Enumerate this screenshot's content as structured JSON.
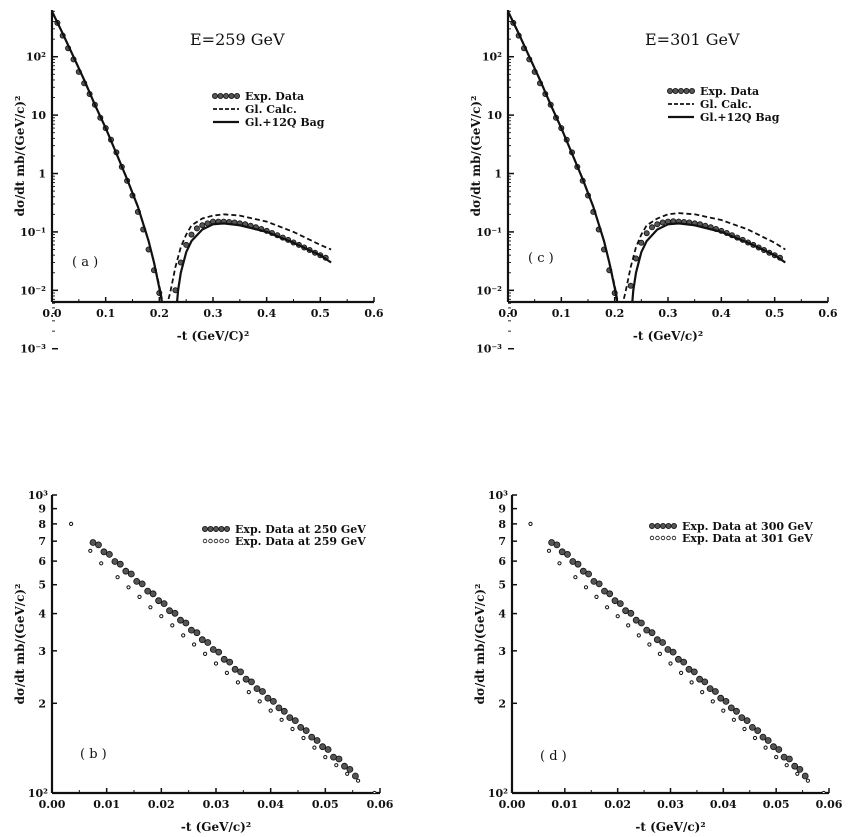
{
  "chart_data": [
    {
      "panel": "a",
      "type": "line",
      "title": "E=259 GeV",
      "panel_label": "( a )",
      "xlabel": "-t (GeV/C)²",
      "ylabel": "dσ/dt   mb/(GeV/c)²",
      "xlim": [
        0,
        0.6
      ],
      "ylim_log10": [
        -2.2,
        2.8
      ],
      "log_y": true,
      "x_ticks": [
        "0.0",
        "0.1",
        "0.2",
        "0.3",
        "0.4",
        "0.5",
        "0.6"
      ],
      "y_ticks": [
        "10²",
        "10",
        "1",
        "10⁻¹",
        "10⁻²",
        "10⁻³"
      ],
      "legend": [
        "Exp. Data",
        "Gl. Calc.",
        "Gl.+12Q Bag"
      ],
      "legend_position": "upper-right",
      "series": [
        {
          "name": "Exp. Data",
          "style": "points",
          "x": [
            0.01,
            0.02,
            0.03,
            0.04,
            0.05,
            0.06,
            0.07,
            0.08,
            0.09,
            0.1,
            0.11,
            0.12,
            0.13,
            0.14,
            0.15,
            0.16,
            0.17,
            0.18,
            0.19,
            0.2,
            0.21,
            0.22,
            0.23,
            0.24,
            0.25,
            0.26,
            0.27,
            0.28,
            0.29,
            0.3,
            0.31,
            0.32,
            0.33,
            0.34,
            0.35,
            0.36,
            0.37,
            0.38,
            0.39,
            0.4,
            0.41,
            0.42,
            0.43,
            0.44,
            0.45,
            0.46,
            0.47,
            0.48,
            0.49,
            0.5,
            0.51
          ],
          "y": [
            380,
            230,
            140,
            90,
            55,
            35,
            23,
            15,
            9,
            6,
            3.8,
            2.3,
            1.3,
            0.75,
            0.42,
            0.22,
            0.11,
            0.05,
            0.022,
            0.009,
            0.004,
            0.0025,
            0.01,
            0.03,
            0.06,
            0.09,
            0.115,
            0.13,
            0.14,
            0.15,
            0.15,
            0.15,
            0.148,
            0.145,
            0.14,
            0.135,
            0.128,
            0.12,
            0.112,
            0.104,
            0.096,
            0.088,
            0.08,
            0.073,
            0.066,
            0.06,
            0.054,
            0.049,
            0.044,
            0.04,
            0.036
          ]
        },
        {
          "name": "Gl. Calc.",
          "style": "dashed",
          "x": [
            0.0,
            0.02,
            0.04,
            0.06,
            0.08,
            0.1,
            0.12,
            0.14,
            0.16,
            0.18,
            0.19,
            0.2,
            0.205,
            0.21,
            0.215,
            0.22,
            0.225,
            0.23,
            0.24,
            0.25,
            0.26,
            0.28,
            0.3,
            0.32,
            0.35,
            0.4,
            0.45,
            0.5,
            0.52
          ],
          "y": [
            600,
            250,
            100,
            40,
            15,
            6,
            2.2,
            0.8,
            0.27,
            0.07,
            0.03,
            0.012,
            0.007,
            0.005,
            0.006,
            0.009,
            0.015,
            0.025,
            0.055,
            0.09,
            0.13,
            0.17,
            0.19,
            0.2,
            0.19,
            0.15,
            0.1,
            0.06,
            0.05
          ]
        },
        {
          "name": "Gl.+12Q Bag",
          "style": "solid",
          "x": [
            0.0,
            0.02,
            0.04,
            0.06,
            0.08,
            0.1,
            0.12,
            0.14,
            0.16,
            0.18,
            0.19,
            0.2,
            0.21,
            0.215,
            0.22,
            0.222,
            0.225,
            0.23,
            0.235,
            0.24,
            0.25,
            0.26,
            0.28,
            0.3,
            0.32,
            0.35,
            0.4,
            0.45,
            0.5,
            0.52
          ],
          "y": [
            600,
            250,
            100,
            40,
            15,
            6,
            2.2,
            0.8,
            0.27,
            0.07,
            0.03,
            0.011,
            0.0035,
            0.0015,
            0.0008,
            0.0007,
            0.001,
            0.003,
            0.01,
            0.02,
            0.045,
            0.07,
            0.11,
            0.135,
            0.14,
            0.13,
            0.1,
            0.065,
            0.04,
            0.03
          ]
        }
      ]
    },
    {
      "panel": "c",
      "type": "line",
      "title": "E=301 GeV",
      "panel_label": "( c )",
      "xlabel": "-t (GeV/c)²",
      "ylabel": "dσ/dt   mb/(GeV/c)²",
      "xlim": [
        0,
        0.6
      ],
      "ylim_log10": [
        -2.2,
        2.8
      ],
      "log_y": true,
      "x_ticks": [
        "0.0",
        "0.1",
        "0.2",
        "0.3",
        "0.4",
        "0.5",
        "0.6"
      ],
      "y_ticks": [
        "10²",
        "10",
        "1",
        "10⁻¹",
        "10⁻²",
        "10⁻³"
      ],
      "legend": [
        "Exp. Data",
        "Gl. Calc.",
        "Gl.+12Q Bag"
      ],
      "legend_position": "upper-right",
      "series": [
        {
          "name": "Exp. Data",
          "style": "points",
          "x": [
            0.01,
            0.02,
            0.03,
            0.04,
            0.05,
            0.06,
            0.07,
            0.08,
            0.09,
            0.1,
            0.11,
            0.12,
            0.13,
            0.14,
            0.15,
            0.16,
            0.17,
            0.18,
            0.19,
            0.2,
            0.21,
            0.22,
            0.23,
            0.24,
            0.25,
            0.26,
            0.27,
            0.28,
            0.29,
            0.3,
            0.31,
            0.32,
            0.33,
            0.34,
            0.35,
            0.36,
            0.37,
            0.38,
            0.39,
            0.4,
            0.41,
            0.42,
            0.43,
            0.44,
            0.45,
            0.46,
            0.47,
            0.48,
            0.49,
            0.5,
            0.51
          ],
          "y": [
            380,
            230,
            140,
            90,
            55,
            35,
            23,
            15,
            9,
            6,
            3.8,
            2.3,
            1.3,
            0.75,
            0.42,
            0.22,
            0.11,
            0.05,
            0.022,
            0.009,
            0.004,
            0.0028,
            0.012,
            0.035,
            0.065,
            0.095,
            0.12,
            0.135,
            0.145,
            0.15,
            0.152,
            0.15,
            0.148,
            0.145,
            0.14,
            0.135,
            0.128,
            0.12,
            0.112,
            0.104,
            0.096,
            0.088,
            0.08,
            0.073,
            0.066,
            0.06,
            0.054,
            0.049,
            0.044,
            0.04,
            0.036
          ]
        },
        {
          "name": "Gl. Calc.",
          "style": "dashed",
          "x": [
            0.0,
            0.02,
            0.04,
            0.06,
            0.08,
            0.1,
            0.12,
            0.14,
            0.16,
            0.18,
            0.19,
            0.2,
            0.205,
            0.21,
            0.215,
            0.22,
            0.225,
            0.23,
            0.24,
            0.25,
            0.26,
            0.28,
            0.3,
            0.32,
            0.35,
            0.4,
            0.45,
            0.5,
            0.52
          ],
          "y": [
            600,
            250,
            100,
            40,
            15,
            6,
            2.2,
            0.8,
            0.27,
            0.07,
            0.03,
            0.012,
            0.007,
            0.005,
            0.006,
            0.009,
            0.015,
            0.025,
            0.055,
            0.09,
            0.13,
            0.17,
            0.2,
            0.21,
            0.2,
            0.16,
            0.11,
            0.065,
            0.05
          ]
        },
        {
          "name": "Gl.+12Q Bag",
          "style": "solid",
          "x": [
            0.0,
            0.02,
            0.04,
            0.06,
            0.08,
            0.1,
            0.12,
            0.14,
            0.16,
            0.18,
            0.19,
            0.2,
            0.21,
            0.215,
            0.22,
            0.222,
            0.225,
            0.23,
            0.235,
            0.24,
            0.25,
            0.26,
            0.28,
            0.3,
            0.32,
            0.35,
            0.4,
            0.45,
            0.5,
            0.52
          ],
          "y": [
            600,
            250,
            100,
            40,
            15,
            6,
            2.2,
            0.8,
            0.27,
            0.07,
            0.03,
            0.011,
            0.0035,
            0.0015,
            0.0008,
            0.0007,
            0.001,
            0.003,
            0.01,
            0.02,
            0.045,
            0.07,
            0.11,
            0.135,
            0.14,
            0.13,
            0.1,
            0.065,
            0.04,
            0.03
          ]
        }
      ]
    },
    {
      "panel": "b",
      "type": "scatter",
      "title": "",
      "panel_label": "( b )",
      "xlabel": "-t (GeV/c)²",
      "ylabel": "dσ/dt   mb/(GeV/c)²",
      "xlim": [
        0,
        0.06
      ],
      "ylim": [
        100,
        1000
      ],
      "log_y": true,
      "x_ticks": [
        "0.00",
        "0.01",
        "0.02",
        "0.03",
        "0.04",
        "0.05",
        "0.06"
      ],
      "y_ticks": [
        "10³",
        "9",
        "8",
        "7",
        "6",
        "5",
        "4",
        "3",
        "2",
        "10²"
      ],
      "legend": [
        "Exp. Data at 250 GeV",
        "Exp. Data at 259 GeV"
      ],
      "legend_position": "upper-right",
      "series": [
        {
          "name": "Exp. Data at 250 GeV",
          "style": "filled-points",
          "x": [
            0.0075,
            0.0085,
            0.0095,
            0.0105,
            0.0115,
            0.0125,
            0.0135,
            0.0145,
            0.0155,
            0.0165,
            0.0175,
            0.0185,
            0.0195,
            0.0205,
            0.0215,
            0.0225,
            0.0235,
            0.0245,
            0.0255,
            0.0265,
            0.0275,
            0.0285,
            0.0295,
            0.0305,
            0.0315,
            0.0325,
            0.0335,
            0.0345,
            0.0355,
            0.0365,
            0.0375,
            0.0385,
            0.0395,
            0.0405,
            0.0415,
            0.0425,
            0.0435,
            0.0445,
            0.0455,
            0.0465,
            0.0475,
            0.0485,
            0.0495,
            0.0505,
            0.0515,
            0.0525,
            0.0535,
            0.0545,
            0.0555
          ],
          "y": [
            693,
            680,
            645,
            632,
            598,
            586,
            555,
            543,
            513,
            503,
            476,
            466,
            442,
            432,
            409,
            401,
            380,
            372,
            352,
            345,
            327,
            320,
            303,
            297,
            281,
            275,
            260,
            255,
            241,
            236,
            224,
            219,
            208,
            203,
            193,
            188,
            179,
            175,
            166,
            162,
            154,
            150,
            143,
            140,
            132,
            130,
            123,
            120,
            114
          ]
        },
        {
          "name": "Exp. Data at 259 GeV",
          "style": "open-points",
          "x": [
            0.0035,
            0.007,
            0.009,
            0.012,
            0.014,
            0.016,
            0.018,
            0.02,
            0.022,
            0.024,
            0.026,
            0.028,
            0.03,
            0.032,
            0.034,
            0.036,
            0.038,
            0.04,
            0.042,
            0.044,
            0.046,
            0.048,
            0.05,
            0.052,
            0.054,
            0.056,
            0.059
          ],
          "y": [
            800,
            650,
            590,
            530,
            490,
            455,
            420,
            392,
            365,
            338,
            315,
            293,
            272,
            253,
            235,
            218,
            203,
            189,
            176,
            164,
            153,
            142,
            132,
            124,
            116,
            110,
            100
          ]
        }
      ]
    },
    {
      "panel": "d",
      "type": "scatter",
      "title": "",
      "panel_label": "( d )",
      "xlabel": "-t (GeV/c)²",
      "ylabel": "dσ/dt   mb/(GeV/c)²",
      "xlim": [
        0,
        0.06
      ],
      "ylim": [
        100,
        1000
      ],
      "log_y": true,
      "x_ticks": [
        "0.00",
        "0.01",
        "0.02",
        "0.03",
        "0.04",
        "0.05",
        "0.06"
      ],
      "y_ticks": [
        "10³",
        "9",
        "8",
        "7",
        "6",
        "5",
        "4",
        "3",
        "2",
        "10²"
      ],
      "legend": [
        "Exp. Data at 300 GeV",
        "Exp. Data at 301 GeV"
      ],
      "legend_position": "upper-right",
      "series": [
        {
          "name": "Exp. Data at 300 GeV",
          "style": "filled-points",
          "x": [
            0.0075,
            0.0085,
            0.0095,
            0.0105,
            0.0115,
            0.0125,
            0.0135,
            0.0145,
            0.0155,
            0.0165,
            0.0175,
            0.0185,
            0.0195,
            0.0205,
            0.0215,
            0.0225,
            0.0235,
            0.0245,
            0.0255,
            0.0265,
            0.0275,
            0.0285,
            0.0295,
            0.0305,
            0.0315,
            0.0325,
            0.0335,
            0.0345,
            0.0355,
            0.0365,
            0.0375,
            0.0385,
            0.0395,
            0.0405,
            0.0415,
            0.0425,
            0.0435,
            0.0445,
            0.0455,
            0.0465,
            0.0475,
            0.0485,
            0.0495,
            0.0505,
            0.0515,
            0.0525,
            0.0535,
            0.0545,
            0.0555
          ],
          "y": [
            693,
            680,
            645,
            632,
            598,
            586,
            555,
            543,
            513,
            503,
            476,
            466,
            442,
            432,
            409,
            401,
            380,
            372,
            352,
            345,
            327,
            320,
            303,
            297,
            281,
            275,
            260,
            255,
            241,
            236,
            224,
            219,
            208,
            203,
            193,
            188,
            179,
            175,
            166,
            162,
            154,
            150,
            143,
            140,
            132,
            130,
            123,
            120,
            114
          ]
        },
        {
          "name": "Exp. Data at 301 GeV",
          "style": "open-points",
          "x": [
            0.0035,
            0.007,
            0.009,
            0.012,
            0.014,
            0.016,
            0.018,
            0.02,
            0.022,
            0.024,
            0.026,
            0.028,
            0.03,
            0.032,
            0.034,
            0.036,
            0.038,
            0.04,
            0.042,
            0.044,
            0.046,
            0.048,
            0.05,
            0.052,
            0.054,
            0.056,
            0.059
          ],
          "y": [
            800,
            650,
            590,
            530,
            490,
            455,
            420,
            392,
            365,
            338,
            315,
            293,
            272,
            253,
            235,
            218,
            203,
            189,
            176,
            164,
            153,
            142,
            132,
            124,
            116,
            110,
            100
          ]
        }
      ]
    }
  ]
}
